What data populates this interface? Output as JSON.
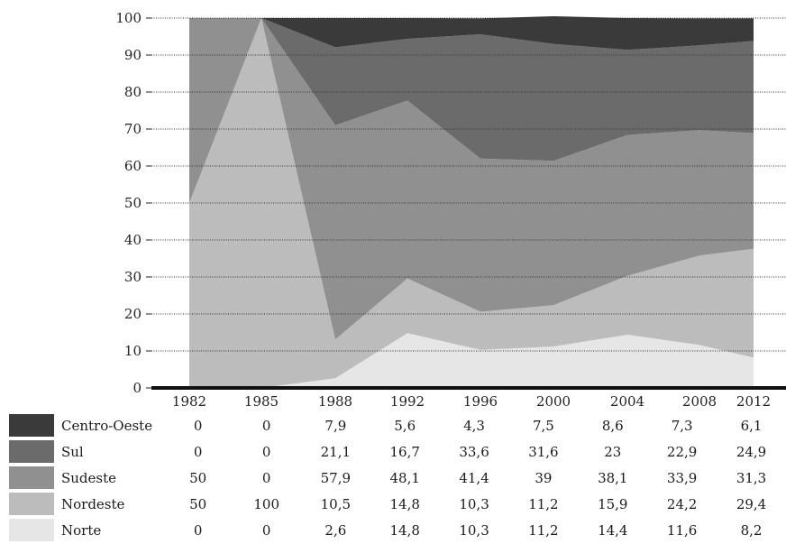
{
  "chart_data": {
    "type": "area",
    "stacked": true,
    "x": [
      "1982",
      "1985",
      "1988",
      "1992",
      "1996",
      "2000",
      "2004",
      "2008",
      "2012"
    ],
    "ylim": [
      0,
      100
    ],
    "yticks": [
      0,
      10,
      20,
      30,
      40,
      50,
      60,
      70,
      80,
      90,
      100
    ],
    "grid": true,
    "legend": "table below chart",
    "series": [
      {
        "name": "Norte",
        "color": "#e6e6e6",
        "values": [
          "0",
          "0",
          "2,6",
          "14,8",
          "10,3",
          "11,2",
          "14,4",
          "11,6",
          "8,2"
        ],
        "numeric": [
          0,
          0,
          2.6,
          14.8,
          10.3,
          11.2,
          14.4,
          11.6,
          8.2
        ]
      },
      {
        "name": "Nordeste",
        "color": "#bcbcbc",
        "values": [
          "50",
          "100",
          "10,5",
          "14,8",
          "10,3",
          "11,2",
          "15,9",
          "24,2",
          "29,4"
        ],
        "numeric": [
          50,
          100,
          10.5,
          14.8,
          10.3,
          11.2,
          15.9,
          24.2,
          29.4
        ]
      },
      {
        "name": "Sudeste",
        "color": "#909090",
        "values": [
          "50",
          "0",
          "57,9",
          "48,1",
          "41,4",
          "39",
          "38,1",
          "33,9",
          "31,3"
        ],
        "numeric": [
          50,
          0,
          57.9,
          48.1,
          41.4,
          39,
          38.1,
          33.9,
          31.3
        ]
      },
      {
        "name": "Sul",
        "color": "#6b6b6b",
        "values": [
          "0",
          "0",
          "21,1",
          "16,7",
          "33,6",
          "31,6",
          "23",
          "22,9",
          "24,9"
        ],
        "numeric": [
          0,
          0,
          21.1,
          16.7,
          33.6,
          31.6,
          23,
          22.9,
          24.9
        ]
      },
      {
        "name": "Centro-Oeste",
        "color": "#3a3a3a",
        "values": [
          "0",
          "0",
          "7,9",
          "5,6",
          "4,3",
          "7,5",
          "8,6",
          "7,3",
          "6,1"
        ],
        "numeric": [
          0,
          0,
          7.9,
          5.6,
          4.3,
          7.5,
          8.6,
          7.3,
          6.1
        ]
      }
    ]
  }
}
